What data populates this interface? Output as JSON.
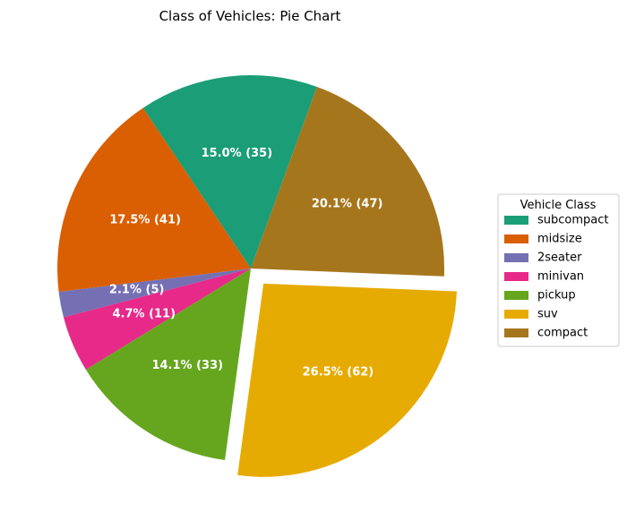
{
  "chart_data": {
    "type": "pie",
    "title": "Class of Vehicles: Pie Chart",
    "categories": [
      "subcompact",
      "midsize",
      "2seater",
      "minivan",
      "pickup",
      "suv",
      "compact"
    ],
    "values": [
      35,
      41,
      5,
      11,
      33,
      62,
      47
    ],
    "labels": [
      "15.0% (35)",
      "17.5% (41)",
      "2.1% (5)",
      "4.7% (11)",
      "14.1% (33)",
      "26.5% (62)",
      "20.1% (47)"
    ],
    "colors": [
      "#1b9e77",
      "#d95f02",
      "#7570b3",
      "#e7298a",
      "#66a61e",
      "#e6ab02",
      "#a6761d"
    ],
    "exploded": [
      "suv"
    ],
    "legend": {
      "title": "Vehicle Class",
      "placement": "right"
    }
  }
}
